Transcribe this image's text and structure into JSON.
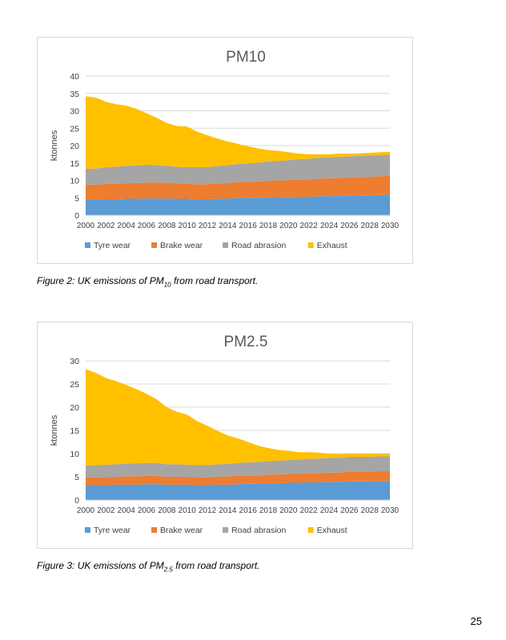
{
  "charts": [
    {
      "id": "pm10",
      "caption": {
        "prefix": "Figure 2: UK emissions of PM",
        "sub": "10",
        "suffix": " from road transport."
      }
    },
    {
      "id": "pm25",
      "caption": {
        "prefix": "Figure 3: UK emissions of PM",
        "sub": "2.5",
        "suffix": " from road transport."
      }
    }
  ],
  "page_number": "25",
  "chart_data": [
    {
      "type": "area",
      "title": "PM10",
      "ylabel": "ktonnes",
      "xlabel": "",
      "stacked": true,
      "ylim": [
        0,
        40
      ],
      "yticks": [
        0,
        5,
        10,
        15,
        20,
        25,
        30,
        35,
        40
      ],
      "grid": true,
      "legend_position": "bottom",
      "x": [
        2000,
        2001,
        2002,
        2003,
        2004,
        2005,
        2006,
        2007,
        2008,
        2009,
        2010,
        2011,
        2012,
        2013,
        2014,
        2015,
        2016,
        2017,
        2018,
        2019,
        2020,
        2021,
        2022,
        2023,
        2024,
        2025,
        2026,
        2027,
        2028,
        2029,
        2030
      ],
      "xtick_labels": [
        "2000",
        "2002",
        "2004",
        "2006",
        "2008",
        "2010",
        "2012",
        "2014",
        "2016",
        "2018",
        "2020",
        "2022",
        "2024",
        "2026",
        "2028",
        "2030"
      ],
      "series": [
        {
          "name": "Tyre wear",
          "color": "#5b9bd5",
          "values": [
            4.5,
            4.5,
            4.6,
            4.6,
            4.7,
            4.7,
            4.8,
            4.8,
            4.8,
            4.7,
            4.7,
            4.6,
            4.6,
            4.7,
            4.8,
            4.9,
            5.0,
            5.0,
            5.1,
            5.2,
            5.2,
            5.3,
            5.3,
            5.4,
            5.5,
            5.5,
            5.6,
            5.7,
            5.7,
            5.8,
            5.9
          ]
        },
        {
          "name": "Brake wear",
          "color": "#ed7d31",
          "values": [
            4.3,
            4.3,
            4.4,
            4.4,
            4.5,
            4.5,
            4.6,
            4.6,
            4.5,
            4.4,
            4.3,
            4.3,
            4.3,
            4.4,
            4.5,
            4.6,
            4.6,
            4.7,
            4.8,
            4.8,
            4.9,
            5.0,
            5.0,
            5.1,
            5.1,
            5.2,
            5.2,
            5.3,
            5.3,
            5.4,
            5.4
          ]
        },
        {
          "name": "Road abrasion",
          "color": "#a5a5a5",
          "values": [
            4.6,
            4.6,
            4.8,
            4.9,
            5.0,
            5.1,
            5.1,
            5.0,
            4.9,
            4.8,
            4.8,
            4.9,
            4.9,
            5.0,
            5.1,
            5.2,
            5.3,
            5.4,
            5.5,
            5.6,
            5.7,
            5.8,
            5.9,
            6.0,
            6.0,
            6.1,
            6.1,
            6.1,
            6.1,
            6.1,
            6.1
          ]
        },
        {
          "name": "Exhaust",
          "color": "#ffc000",
          "values": [
            20.8,
            20.4,
            18.8,
            18.0,
            17.3,
            16.3,
            14.8,
            13.6,
            12.3,
            11.7,
            11.7,
            10.2,
            9.2,
            7.9,
            6.8,
            5.8,
            4.9,
            4.1,
            3.3,
            2.9,
            2.3,
            1.6,
            1.3,
            1.0,
            0.9,
            0.9,
            0.8,
            0.7,
            0.8,
            0.8,
            0.8
          ]
        }
      ]
    },
    {
      "type": "area",
      "title": "PM2.5",
      "ylabel": "ktonnes",
      "xlabel": "",
      "stacked": true,
      "ylim": [
        0,
        30
      ],
      "yticks": [
        0,
        5,
        10,
        15,
        20,
        25,
        30
      ],
      "grid": true,
      "legend_position": "bottom",
      "x": [
        2000,
        2001,
        2002,
        2003,
        2004,
        2005,
        2006,
        2007,
        2008,
        2009,
        2010,
        2011,
        2012,
        2013,
        2014,
        2015,
        2016,
        2017,
        2018,
        2019,
        2020,
        2021,
        2022,
        2023,
        2024,
        2025,
        2026,
        2027,
        2028,
        2029,
        2030
      ],
      "xtick_labels": [
        "2000",
        "2002",
        "2004",
        "2006",
        "2008",
        "2010",
        "2012",
        "2014",
        "2016",
        "2018",
        "2020",
        "2022",
        "2024",
        "2026",
        "2028",
        "2030"
      ],
      "series": [
        {
          "name": "Tyre wear",
          "color": "#5b9bd5",
          "values": [
            3.2,
            3.2,
            3.2,
            3.3,
            3.3,
            3.3,
            3.4,
            3.4,
            3.3,
            3.3,
            3.3,
            3.2,
            3.2,
            3.3,
            3.3,
            3.4,
            3.5,
            3.5,
            3.6,
            3.6,
            3.7,
            3.7,
            3.8,
            3.8,
            3.9,
            3.9,
            4.0,
            4.0,
            4.0,
            4.1,
            4.1
          ]
        },
        {
          "name": "Brake wear",
          "color": "#ed7d31",
          "values": [
            1.7,
            1.7,
            1.7,
            1.7,
            1.8,
            1.8,
            1.8,
            1.8,
            1.7,
            1.7,
            1.7,
            1.7,
            1.7,
            1.7,
            1.8,
            1.8,
            1.8,
            1.8,
            1.9,
            1.9,
            1.9,
            1.9,
            2.0,
            2.0,
            2.0,
            2.0,
            2.1,
            2.1,
            2.1,
            2.1,
            2.1
          ]
        },
        {
          "name": "Road abrasion",
          "color": "#a5a5a5",
          "values": [
            2.5,
            2.6,
            2.7,
            2.7,
            2.7,
            2.8,
            2.8,
            2.8,
            2.7,
            2.7,
            2.6,
            2.6,
            2.6,
            2.7,
            2.7,
            2.8,
            2.8,
            2.9,
            2.9,
            3.0,
            3.0,
            3.1,
            3.1,
            3.1,
            3.2,
            3.2,
            3.2,
            3.2,
            3.2,
            3.2,
            3.2
          ]
        },
        {
          "name": "Exhaust",
          "color": "#ffc000",
          "values": [
            20.8,
            19.9,
            18.7,
            17.9,
            17.0,
            16.0,
            14.9,
            13.7,
            12.3,
            11.3,
            10.8,
            9.5,
            8.5,
            7.2,
            6.1,
            5.3,
            4.4,
            3.5,
            2.8,
            2.3,
            2.0,
            1.6,
            1.4,
            1.3,
            0.9,
            0.8,
            0.7,
            0.7,
            0.7,
            0.6,
            0.6
          ]
        }
      ]
    }
  ]
}
